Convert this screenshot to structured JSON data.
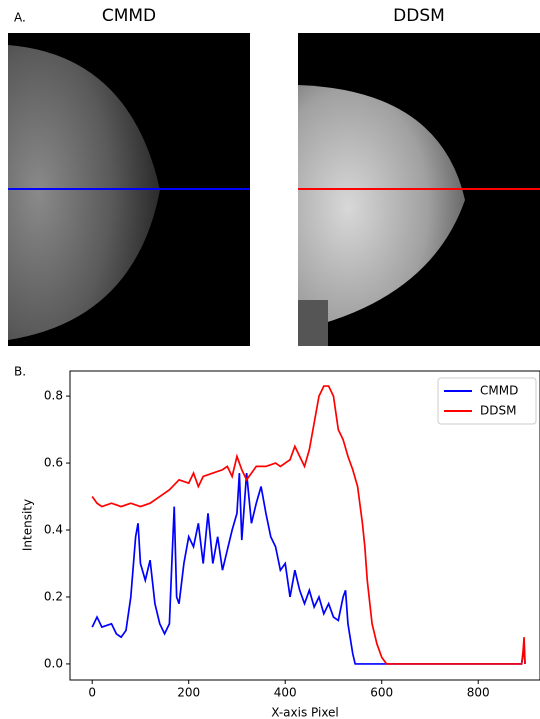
{
  "figure": {
    "a_label": "A.",
    "b_label": "B.",
    "image_titles": [
      "CMMD",
      "DDSM"
    ]
  },
  "chart_data": {
    "type": "line",
    "xlabel": "X-axis Pixel",
    "ylabel": "Intensity",
    "xlim": [
      -46,
      928
    ],
    "ylim": [
      -0.048,
      0.875
    ],
    "xticks": [
      0,
      200,
      400,
      600,
      800
    ],
    "yticks": [
      {
        "value": 0,
        "label": "0.0"
      },
      0.2,
      0.4,
      0.6,
      0.8
    ],
    "legend": "upper right",
    "series": [
      {
        "name": "CMMD",
        "color": "#0000ff",
        "x": [
          0,
          10,
          20,
          40,
          50,
          60,
          70,
          80,
          90,
          95,
          100,
          110,
          120,
          130,
          140,
          150,
          160,
          165,
          170,
          175,
          180,
          190,
          200,
          210,
          220,
          230,
          240,
          250,
          260,
          270,
          280,
          290,
          300,
          305,
          310,
          320,
          330,
          340,
          350,
          360,
          370,
          380,
          390,
          400,
          410,
          420,
          430,
          440,
          450,
          460,
          470,
          480,
          490,
          500,
          510,
          520,
          525,
          530,
          540,
          545,
          890,
          893,
          895,
          897
        ],
        "values": [
          0.11,
          0.14,
          0.11,
          0.12,
          0.09,
          0.08,
          0.1,
          0.2,
          0.38,
          0.42,
          0.3,
          0.25,
          0.31,
          0.18,
          0.12,
          0.09,
          0.12,
          0.3,
          0.47,
          0.2,
          0.18,
          0.3,
          0.38,
          0.35,
          0.42,
          0.3,
          0.45,
          0.3,
          0.38,
          0.28,
          0.34,
          0.4,
          0.45,
          0.57,
          0.37,
          0.57,
          0.42,
          0.48,
          0.53,
          0.45,
          0.38,
          0.35,
          0.28,
          0.3,
          0.2,
          0.28,
          0.22,
          0.18,
          0.22,
          0.17,
          0.2,
          0.15,
          0.18,
          0.14,
          0.13,
          0.2,
          0.22,
          0.12,
          0.03,
          0,
          0,
          0.03,
          0.05,
          0
        ]
      },
      {
        "name": "DDSM",
        "color": "#ff0000",
        "x": [
          0,
          10,
          20,
          40,
          60,
          80,
          100,
          120,
          140,
          160,
          180,
          200,
          210,
          220,
          230,
          250,
          270,
          280,
          290,
          300,
          310,
          320,
          330,
          340,
          360,
          380,
          390,
          410,
          420,
          430,
          440,
          450,
          460,
          470,
          480,
          490,
          500,
          510,
          520,
          530,
          540,
          550,
          560,
          565,
          570,
          580,
          590,
          600,
          610,
          890,
          893,
          895,
          897
        ],
        "values": [
          0.5,
          0.48,
          0.47,
          0.48,
          0.47,
          0.48,
          0.47,
          0.48,
          0.5,
          0.52,
          0.55,
          0.54,
          0.57,
          0.53,
          0.56,
          0.57,
          0.58,
          0.59,
          0.56,
          0.62,
          0.58,
          0.55,
          0.57,
          0.59,
          0.59,
          0.6,
          0.59,
          0.61,
          0.65,
          0.62,
          0.59,
          0.64,
          0.72,
          0.8,
          0.83,
          0.83,
          0.8,
          0.7,
          0.67,
          0.62,
          0.58,
          0.53,
          0.42,
          0.35,
          0.25,
          0.12,
          0.06,
          0.02,
          0,
          0,
          0.04,
          0.08,
          0
        ]
      }
    ]
  }
}
